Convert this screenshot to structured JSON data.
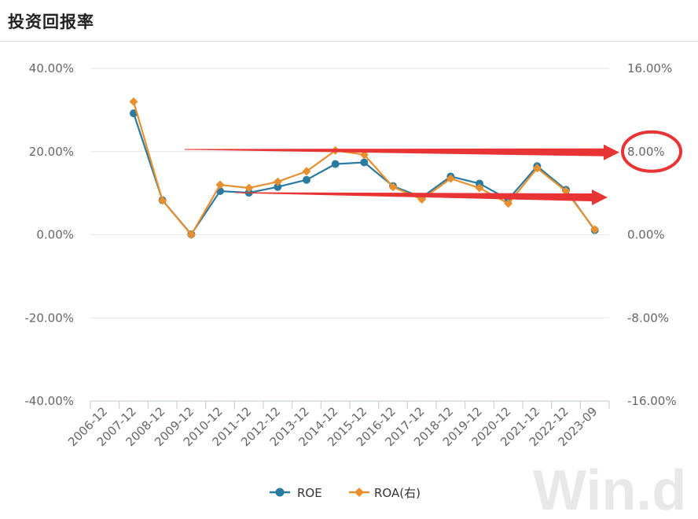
{
  "page": {
    "title": "投资回报率"
  },
  "chart_data": {
    "type": "line",
    "title": "投资回报率",
    "categories": [
      "2006-12",
      "2007-12",
      "2008-12",
      "2009-12",
      "2010-12",
      "2011-12",
      "2012-12",
      "2013-12",
      "2014-12",
      "2015-12",
      "2016-12",
      "2017-12",
      "2018-12",
      "2019-12",
      "2020-12",
      "2021-12",
      "2022-12",
      "2023-09"
    ],
    "y_left": {
      "ticks": [
        "40.00%",
        "20.00%",
        "0.00%",
        "-20.00%",
        "-40.00%"
      ],
      "range": [
        -40,
        40
      ]
    },
    "y_right": {
      "ticks": [
        "16.00%",
        "8.00%",
        "0.00%",
        "-8.00%",
        "-16.00%"
      ],
      "range": [
        -16,
        16
      ]
    },
    "grid": true,
    "legend_position": "bottom",
    "series": [
      {
        "name": "ROE",
        "axis": "left",
        "color": "#2b7aa0",
        "marker": "circle",
        "values": [
          null,
          29.2,
          8.3,
          0.1,
          10.5,
          10.1,
          11.5,
          13.2,
          17.0,
          17.4,
          11.7,
          9.0,
          14.0,
          12.3,
          8.5,
          16.5,
          10.8,
          1.1
        ]
      },
      {
        "name": "ROA(右)",
        "axis": "right",
        "color": "#e8902f",
        "marker": "diamond",
        "values": [
          null,
          12.8,
          3.3,
          0.0,
          4.8,
          4.5,
          5.1,
          6.1,
          8.1,
          7.7,
          4.6,
          3.4,
          5.4,
          4.5,
          3.0,
          6.4,
          4.2,
          0.5
        ]
      }
    ],
    "annotations": {
      "arrow_color": "#e83434",
      "arrows": [
        {
          "from": "2010-12",
          "to": "right-axis",
          "target_right_value": 8
        },
        {
          "from": "2011-12",
          "to": "right-axis",
          "target_right_value": 3.9
        }
      ],
      "circled_tick": "8.00%"
    }
  },
  "watermark": {
    "text": "Win.d"
  }
}
